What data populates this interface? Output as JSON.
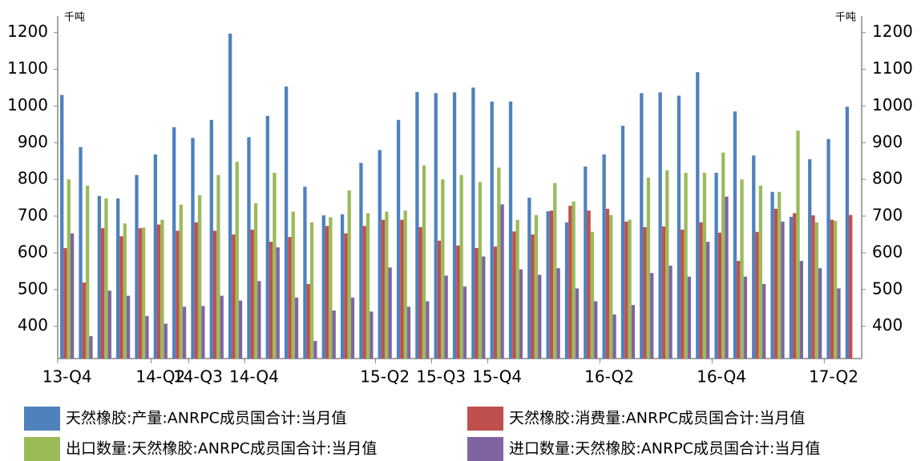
{
  "chart_data": {
    "type": "bar",
    "y_unit": "千吨",
    "y2_unit": "千吨",
    "categories": [
      "13-Q4",
      null,
      null,
      null,
      null,
      "14-Q2",
      null,
      "14-Q3",
      null,
      null,
      "14-Q4",
      null,
      null,
      null,
      null,
      null,
      null,
      "15-Q2",
      null,
      null,
      "15-Q3",
      null,
      null,
      "15-Q4",
      null,
      null,
      null,
      null,
      null,
      "16-Q2",
      null,
      null,
      null,
      null,
      null,
      "16-Q4",
      null,
      null,
      null,
      null,
      null,
      "17-Q2",
      null
    ],
    "series": [
      {
        "name": "天然橡胶:产量:ANRPC成员国合计:当月值",
        "color": "#4f81bd",
        "values": [
          1030,
          888,
          755,
          748,
          812,
          868,
          942,
          913,
          962,
          1197,
          915,
          973,
          1053,
          780,
          702,
          705,
          845,
          880,
          962,
          1038,
          1035,
          1037,
          1050,
          1012,
          1012,
          750,
          713,
          683,
          835,
          868,
          946,
          1035,
          1037,
          1028,
          1092,
          818,
          985,
          865,
          766,
          698,
          855,
          910,
          998
        ]
      },
      {
        "name": "天然橡胶:消费量:ANRPC成员国合计:当月值",
        "color": "#c0504d",
        "values": [
          613,
          519,
          667,
          645,
          667,
          677,
          660,
          683,
          660,
          650,
          663,
          630,
          643,
          515,
          673,
          653,
          673,
          690,
          690,
          670,
          633,
          620,
          613,
          617,
          658,
          650,
          715,
          728,
          715,
          720,
          685,
          670,
          672,
          663,
          683,
          655,
          578,
          657,
          720,
          708,
          702,
          690,
          703
        ]
      },
      {
        "name": "出口数量:天然橡胶:ANRPC成员国合计:当月值",
        "color": "#9bbb59",
        "values": [
          800,
          783,
          748,
          680,
          669,
          690,
          731,
          757,
          812,
          848,
          735,
          818,
          712,
          683,
          697,
          770,
          708,
          712,
          715,
          838,
          800,
          812,
          793,
          832,
          690,
          703,
          790,
          740,
          657,
          703,
          690,
          805,
          825,
          818,
          818,
          873,
          800,
          783,
          766,
          933,
          683,
          687,
          null
        ]
      },
      {
        "name": "进口数量:天然橡胶:ANRPC成员国合计:当月值",
        "color": "#8064a2",
        "values": [
          653,
          373,
          497,
          483,
          428,
          407,
          453,
          455,
          483,
          470,
          523,
          615,
          478,
          360,
          443,
          478,
          440,
          560,
          453,
          468,
          538,
          508,
          590,
          732,
          555,
          540,
          558,
          503,
          468,
          432,
          458,
          545,
          565,
          535,
          630,
          753,
          535,
          515,
          685,
          578,
          558,
          503,
          null
        ]
      }
    ],
    "ylim": [
      312,
      1245
    ],
    "yticks": [
      400,
      500,
      600,
      700,
      800,
      900,
      1000,
      1100,
      1200
    ],
    "y2lim": [
      312,
      1245
    ],
    "y2ticks": [
      400,
      500,
      600,
      700,
      800,
      900,
      1000,
      1100,
      1200
    ],
    "grid": false
  }
}
